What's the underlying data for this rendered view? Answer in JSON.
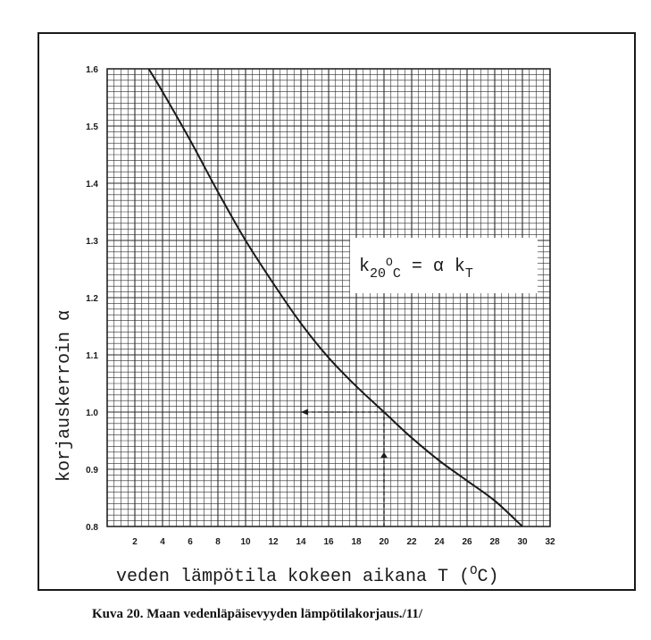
{
  "chart_data": {
    "type": "line",
    "x": [
      3,
      4,
      6,
      8,
      10,
      12,
      14,
      16,
      18,
      20,
      22,
      24,
      26,
      28,
      30
    ],
    "y": [
      1.6,
      1.56,
      1.475,
      1.385,
      1.3,
      1.225,
      1.155,
      1.095,
      1.045,
      1.0,
      0.955,
      0.915,
      0.88,
      0.845,
      0.8
    ],
    "xlabel": "veden lämpötila kokeen aikana  T  (",
    "xlabel_unit_sup": "O",
    "xlabel_unit": "C)",
    "ylabel": "korjauskerroin  α",
    "xlim": [
      0,
      32
    ],
    "ylim": [
      0.8,
      1.6
    ],
    "xticks": [
      2,
      4,
      6,
      8,
      10,
      12,
      14,
      16,
      18,
      20,
      22,
      24,
      26,
      28,
      30,
      32
    ],
    "yticks": [
      0.8,
      0.9,
      1.0,
      1.1,
      1.2,
      1.3,
      1.4,
      1.5,
      1.6
    ],
    "xtick_labels": [
      "2",
      "4",
      "6",
      "8",
      "10",
      "12",
      "14",
      "16",
      "18",
      "20",
      "22",
      "24",
      "26",
      "28",
      "30",
      "32"
    ],
    "ytick_labels": [
      "0.8",
      "0.9",
      "1.0",
      "1.1",
      "1.2",
      "1.3",
      "1.4",
      "1.5",
      "1.6"
    ],
    "grid": true,
    "annotation": {
      "k": "k",
      "sub1": "20",
      "sup": "O",
      "sub2": "C",
      "rest": " = α k",
      "sub3": "T"
    },
    "example_reading": {
      "x": 20,
      "y": 1.0
    },
    "caption": "Kuva 20. Maan vedenläpäisevyyden lämpötilakorjaus./11/"
  },
  "colors": {
    "ink": "#1a1a1a",
    "grid": "#2a2a2a",
    "paper": "#ffffff"
  }
}
